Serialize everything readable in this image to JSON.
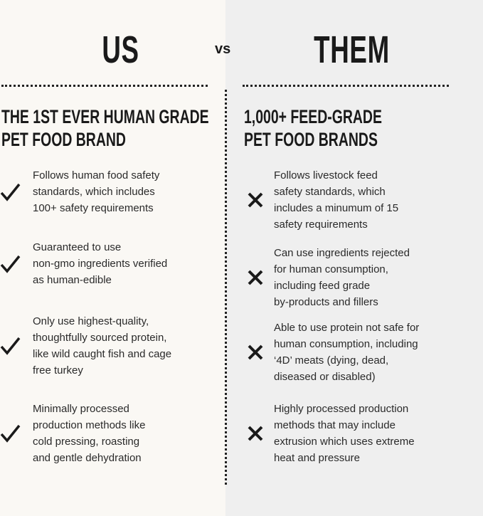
{
  "left": {
    "heading": "US",
    "subheading": "THE 1ST EVER HUMAN GRADE\nPET FOOD BRAND",
    "icon": "check-icon",
    "items": [
      "Follows human food safety\nstandards, which includes\n100+ safety requirements",
      "Guaranteed to use\nnon-gmo ingredients verified\nas human-edible",
      "Only use highest-quality,\nthoughtfully sourced protein,\nlike wild caught fish and cage\nfree turkey",
      "Minimally processed\nproduction methods like\ncold pressing, roasting\nand gentle dehydration"
    ]
  },
  "vs": "vs",
  "right": {
    "heading": "THEM",
    "subheading": "1,000+ FEED-GRADE\nPET FOOD BRANDS",
    "icon": "x-icon",
    "items": [
      "Follows livestock feed\nsafety standards, which\nincludes a minumum of 15\nsafety requirements",
      "Can use ingredients rejected\nfor human consumption,\nincluding feed grade\nby-products and fillers",
      "Able to use protein not safe for\nhuman consumption, including\n‘4D’ meats (dying, dead,\ndiseased or disabled)",
      "Highly processed production\nmethods that may include\nextrusion which uses extreme\nheat and pressure"
    ]
  },
  "colors": {
    "left_bg": "#faf8f4",
    "right_bg": "#efefef",
    "text": "#1a1a1a"
  }
}
